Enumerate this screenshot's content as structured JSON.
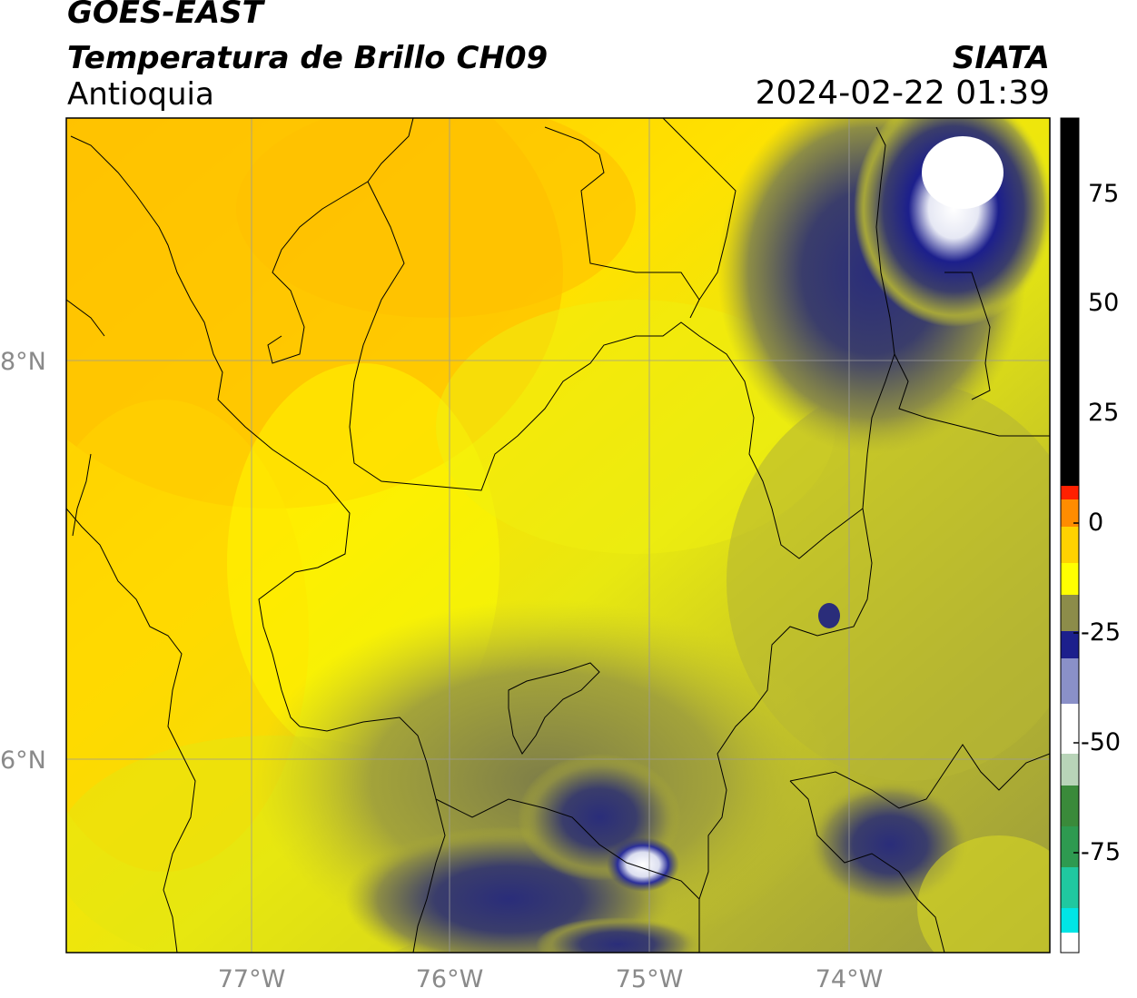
{
  "header": {
    "satellite": "GOES-EAST",
    "product": "Temperatura de Brillo CH09",
    "region": "Antioquia",
    "organization": "SIATA",
    "datetime": "2024-02-22 01:39"
  },
  "map": {
    "lat_labels": [
      "8°N",
      "6°N"
    ],
    "lon_labels": [
      "77°W",
      "76°W",
      "75°W",
      "74°W"
    ],
    "extent": {
      "lon_min": -77.93,
      "lon_max": -72.98,
      "lat_min": 4.98,
      "lat_max": 9.19
    },
    "gridline_color": "#9a9a9a",
    "boundary_color": "#000000"
  },
  "colorbar": {
    "ticks": [
      "75",
      "50",
      "25",
      "0",
      "-25",
      "-50",
      "-75"
    ],
    "range": [
      -95,
      92
    ],
    "stops": [
      {
        "v": -95,
        "c": "#ffffff"
      },
      {
        "v": -92,
        "c": "#00e5e5"
      },
      {
        "v": -82,
        "c": "#3cb371"
      },
      {
        "v": -70,
        "c": "#2e7d32"
      },
      {
        "v": -60,
        "c": "#c8dcc8"
      },
      {
        "v": -50,
        "c": "#ffffff"
      },
      {
        "v": -40,
        "c": "#8a90c8"
      },
      {
        "v": -30,
        "c": "#1c1f8c"
      },
      {
        "v": -25,
        "c": "#3a3d6b"
      },
      {
        "v": -18,
        "c": "#a6a63a"
      },
      {
        "v": -10,
        "c": "#ffff00"
      },
      {
        "v": -5,
        "c": "#ffd200"
      },
      {
        "v": 0,
        "c": "#ff9a00"
      },
      {
        "v": 5,
        "c": "#ff2000"
      },
      {
        "v": 8,
        "c": "#ff0000"
      },
      {
        "v": 9,
        "c": "#000000"
      },
      {
        "v": 92,
        "c": "#000000"
      }
    ]
  }
}
